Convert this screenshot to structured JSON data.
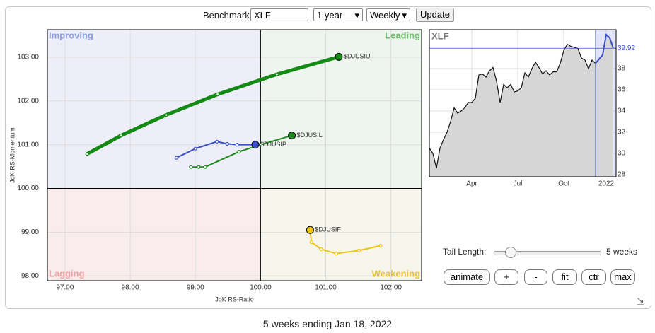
{
  "controls": {
    "benchmark_label": "Benchmark:",
    "benchmark": "XLF",
    "period": "1 year",
    "frequency": "Weekly",
    "update": "Update",
    "tail_label": "Tail Length:",
    "tail_value": "5 weeks",
    "buttons": [
      "animate",
      "+",
      "-",
      "fit",
      "ctr",
      "max"
    ]
  },
  "chart_data": [
    {
      "type": "line",
      "xlabel": "JdK RS-Ratio",
      "ylabel": "JdK RS-Momentum",
      "quadrants": {
        "improving": "Improving",
        "leading": "Leading",
        "lagging": "Lagging",
        "weakening": "Weakening"
      },
      "xlim": [
        96.73,
        102.47
      ],
      "ylim": [
        97.89,
        103.63
      ],
      "xticks": [
        {
          "value": 97,
          "label": "97.00"
        },
        {
          "value": 98,
          "label": "98.00"
        },
        {
          "value": 99,
          "label": "99.00"
        },
        {
          "value": 100,
          "label": "100.00"
        },
        {
          "value": 101,
          "label": "101.00"
        },
        {
          "value": 102,
          "label": "102.00"
        }
      ],
      "yticks": [
        {
          "value": 98,
          "label": "98.00"
        },
        {
          "value": 99,
          "label": "99.00"
        },
        {
          "value": 100,
          "label": "100.00"
        },
        {
          "value": 101,
          "label": "101.00"
        },
        {
          "value": 102,
          "label": "102.00"
        },
        {
          "value": 103,
          "label": "103.00"
        }
      ],
      "grid": true,
      "series": [
        {
          "name": "$DJUSIU",
          "color": "#138a13",
          "line_width": 5,
          "x": [
            97.34,
            97.86,
            98.55,
            99.34,
            100.25,
            101.2
          ],
          "values": [
            100.79,
            101.21,
            101.68,
            102.15,
            102.61,
            103.01
          ]
        },
        {
          "name": "$DJUSIL",
          "color": "#228b22",
          "line_width": 2,
          "x": [
            98.93,
            99.05,
            99.15,
            99.67,
            100.0,
            100.48
          ],
          "values": [
            100.49,
            100.49,
            100.49,
            100.84,
            101.0,
            101.21
          ]
        },
        {
          "name": "$DJUSIP",
          "color": "#3a4fc8",
          "line_width": 2,
          "x": [
            98.71,
            99.0,
            99.33,
            99.49,
            99.64,
            99.92
          ],
          "values": [
            100.7,
            100.91,
            101.07,
            101.02,
            101.0,
            101.0
          ]
        },
        {
          "name": "$DJUSIF",
          "color": "#f2c40f",
          "line_width": 2,
          "x": [
            101.84,
            101.51,
            101.16,
            100.93,
            100.78,
            100.76
          ],
          "values": [
            98.69,
            98.58,
            98.51,
            98.61,
            98.77,
            99.05
          ]
        }
      ]
    },
    {
      "type": "line",
      "title": "XLF",
      "xlim": [
        0,
        52.8
      ],
      "ylim": [
        27.8,
        41.67
      ],
      "xticks": [
        {
          "value": 12,
          "label": "Apr"
        },
        {
          "value": 25,
          "label": "Jul"
        },
        {
          "value": 38,
          "label": "Oct"
        },
        {
          "value": 50,
          "label": "2022"
        }
      ],
      "yticks": [
        28,
        30,
        32,
        34,
        36,
        38
      ],
      "grid": true,
      "color": "#111111",
      "highlight_color": "#3a4fc8",
      "values": [
        30.5,
        30,
        28.6,
        30.5,
        31.3,
        32,
        33,
        34.3,
        33.8,
        34,
        34.3,
        34.8,
        34.8,
        35.2,
        37.4,
        37.5,
        37.2,
        37.8,
        38.1,
        36.8,
        34.8,
        36.5,
        36.2,
        36.5,
        35.8,
        35.9,
        36.2,
        37.6,
        37.2,
        38,
        38.6,
        38.1,
        37.5,
        37.8,
        37.4,
        37.7,
        37.7,
        38.5,
        39.7,
        40.3,
        40.1,
        40,
        39.9,
        39,
        38.8,
        38,
        38.8,
        38.5,
        38.9,
        39.3,
        41.2,
        40.9,
        39.92
      ]
    }
  ],
  "footer": "5 weeks ending Jan 18, 2022"
}
